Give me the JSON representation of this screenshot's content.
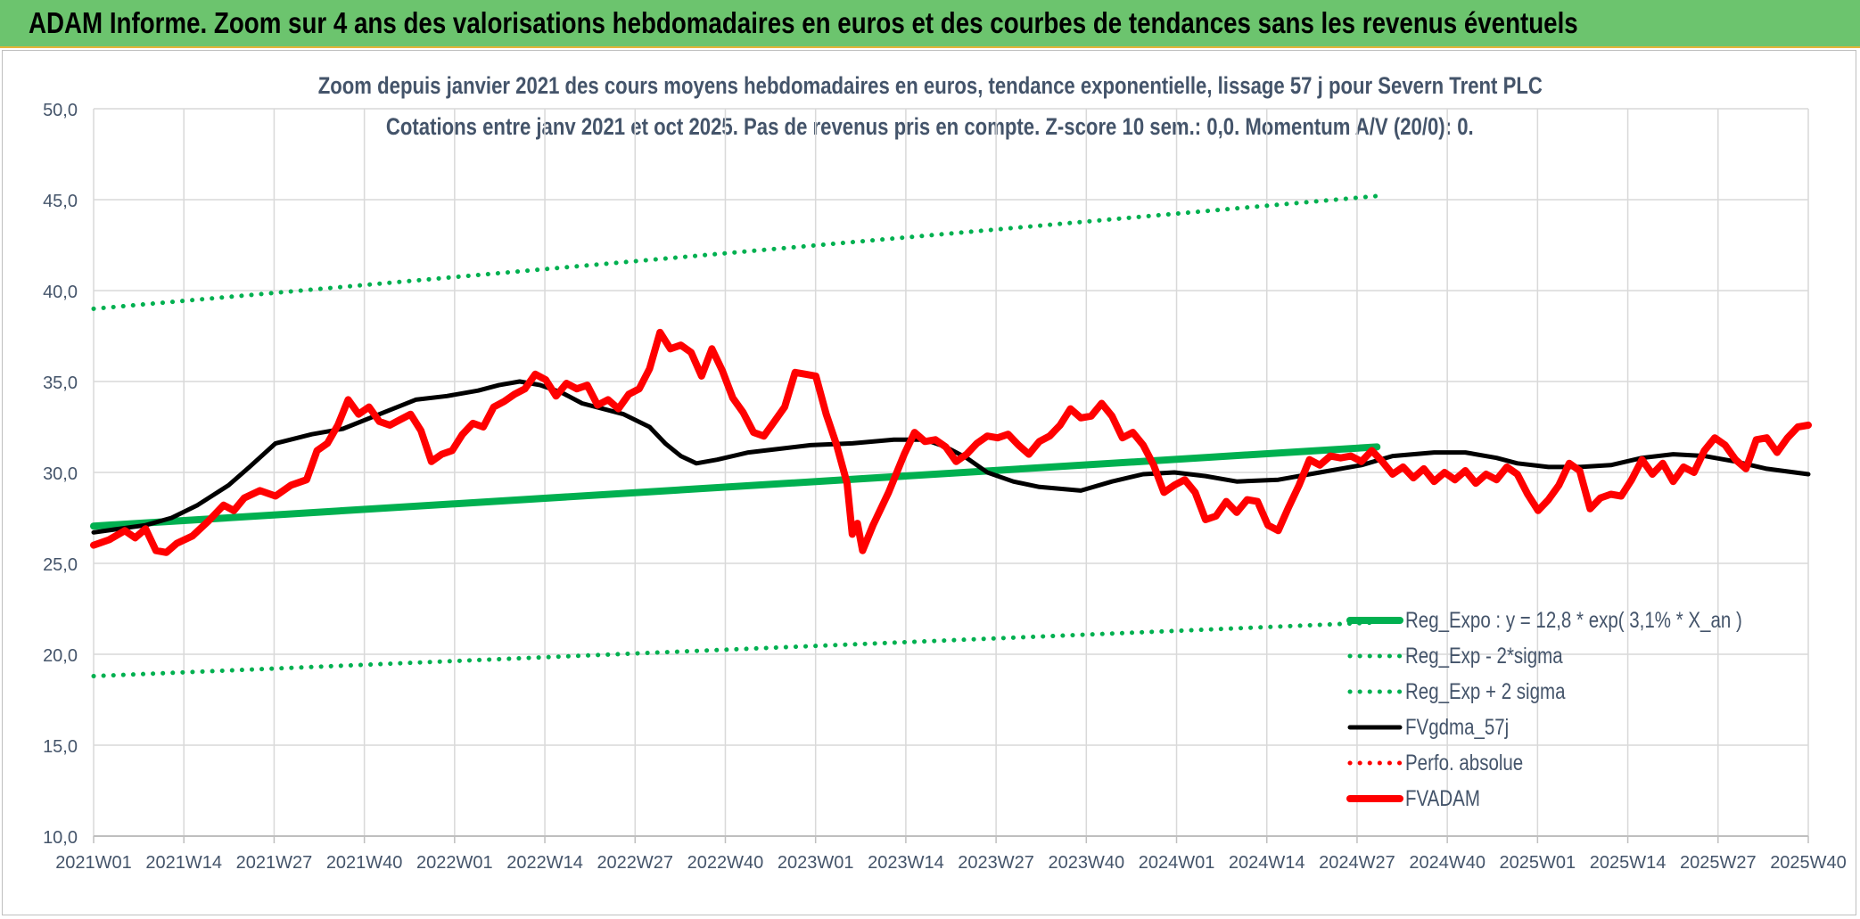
{
  "banner": {
    "title": "ADAM Informe. Zoom sur 4 ans des valorisations hebdomadaires en euros et des courbes de tendances sans les revenus éventuels"
  },
  "chart_data": {
    "type": "line",
    "title": "Zoom depuis janvier 2021 des cours moyens hebdomadaires en euros, tendance exponentielle, lissage 57 j pour Severn Trent PLC",
    "subtitle": "Cotations entre janv 2021 et oct 2025. Pas de revenus pris en compte. Z-score 10 sem.: 0,0. Momentum A/V (20/0): 0.",
    "xlabel": "",
    "ylabel": "",
    "ylim": [
      10,
      50
    ],
    "yticks": [
      "10,0",
      "15,0",
      "20,0",
      "25,0",
      "30,0",
      "35,0",
      "40,0",
      "45,0",
      "50,0"
    ],
    "x_tick_labels": [
      "2021W01",
      "2021W14",
      "2021W27",
      "2021W40",
      "2022W01",
      "2022W14",
      "2022W27",
      "2022W40",
      "2023W01",
      "2023W14",
      "2023W27",
      "2023W40",
      "2024W01",
      "2024W14",
      "2024W27",
      "2024W40",
      "2025W01",
      "2025W14",
      "2025W27",
      "2025W40"
    ],
    "grid": true,
    "legend_position": "bottom-right",
    "series": [
      {
        "name": "Reg_Expo : y = 12,8 * exp( 3,1% * X_an )",
        "style": "solid-thick",
        "color": "#00b050",
        "points": [
          [
            0,
            27.05
          ],
          [
            247,
            31.4
          ]
        ]
      },
      {
        "name": "Reg_Exp - 2*sigma",
        "style": "dotted",
        "color": "#00b050",
        "points": [
          [
            0,
            18.8
          ],
          [
            247,
            21.75
          ]
        ]
      },
      {
        "name": "Reg_Exp + 2 sigma",
        "style": "dotted",
        "color": "#00b050",
        "points": [
          [
            0,
            39.0
          ],
          [
            247,
            45.2
          ]
        ]
      },
      {
        "name": "FVgdma_57j",
        "style": "solid",
        "color": "#000000",
        "points": [
          [
            0,
            26.7
          ],
          [
            5,
            26.9
          ],
          [
            10,
            27.1
          ],
          [
            15,
            27.5
          ],
          [
            20,
            28.2
          ],
          [
            26,
            29.3
          ],
          [
            30,
            30.3
          ],
          [
            35,
            31.6
          ],
          [
            42,
            32.1
          ],
          [
            48,
            32.4
          ],
          [
            55,
            33.2
          ],
          [
            62,
            34.0
          ],
          [
            68,
            34.2
          ],
          [
            74,
            34.5
          ],
          [
            78,
            34.8
          ],
          [
            82,
            35.0
          ],
          [
            86,
            34.8
          ],
          [
            90,
            34.4
          ],
          [
            94,
            33.8
          ],
          [
            98,
            33.5
          ],
          [
            102,
            33.2
          ],
          [
            107,
            32.5
          ],
          [
            110,
            31.6
          ],
          [
            113,
            30.9
          ],
          [
            116,
            30.5
          ],
          [
            120,
            30.7
          ],
          [
            126,
            31.1
          ],
          [
            132,
            31.3
          ],
          [
            138,
            31.5
          ],
          [
            146,
            31.6
          ],
          [
            154,
            31.8
          ],
          [
            160,
            31.8
          ],
          [
            164,
            31.4
          ],
          [
            168,
            30.8
          ],
          [
            172,
            30.0
          ],
          [
            177,
            29.5
          ],
          [
            182,
            29.2
          ],
          [
            190,
            29.0
          ],
          [
            196,
            29.5
          ],
          [
            202,
            29.9
          ],
          [
            208,
            30.0
          ],
          [
            214,
            29.8
          ],
          [
            220,
            29.5
          ],
          [
            228,
            29.6
          ],
          [
            236,
            30.0
          ],
          [
            244,
            30.4
          ],
          [
            250,
            30.9
          ],
          [
            258,
            31.1
          ],
          [
            264,
            31.1
          ],
          [
            270,
            30.8
          ],
          [
            274,
            30.5
          ],
          [
            280,
            30.3
          ],
          [
            286,
            30.3
          ],
          [
            292,
            30.4
          ],
          [
            298,
            30.8
          ],
          [
            304,
            31.0
          ],
          [
            310,
            30.9
          ],
          [
            316,
            30.6
          ],
          [
            322,
            30.2
          ],
          [
            330,
            29.9
          ]
        ]
      },
      {
        "name": "Perfo. absolue",
        "style": "dotted",
        "color": "#ff0000",
        "points": []
      },
      {
        "name": "FVADAM",
        "style": "solid-thick",
        "color": "#ff0000",
        "points": [
          [
            0,
            26.0
          ],
          [
            3,
            26.3
          ],
          [
            6,
            26.8
          ],
          [
            8,
            26.4
          ],
          [
            10,
            26.9
          ],
          [
            12,
            25.7
          ],
          [
            14,
            25.6
          ],
          [
            16,
            26.1
          ],
          [
            19,
            26.5
          ],
          [
            22,
            27.3
          ],
          [
            25,
            28.2
          ],
          [
            27,
            27.9
          ],
          [
            29,
            28.6
          ],
          [
            32,
            29.0
          ],
          [
            35,
            28.7
          ],
          [
            38,
            29.3
          ],
          [
            41,
            29.6
          ],
          [
            43,
            31.2
          ],
          [
            45,
            31.6
          ],
          [
            47,
            32.6
          ],
          [
            49,
            34.0
          ],
          [
            51,
            33.2
          ],
          [
            53,
            33.6
          ],
          [
            55,
            32.8
          ],
          [
            57,
            32.6
          ],
          [
            59,
            32.9
          ],
          [
            61,
            33.2
          ],
          [
            63,
            32.3
          ],
          [
            65,
            30.6
          ],
          [
            67,
            31.0
          ],
          [
            69,
            31.2
          ],
          [
            71,
            32.1
          ],
          [
            73,
            32.7
          ],
          [
            75,
            32.5
          ],
          [
            77,
            33.6
          ],
          [
            79,
            33.9
          ],
          [
            81,
            34.3
          ],
          [
            83,
            34.6
          ],
          [
            85,
            35.4
          ],
          [
            87,
            35.1
          ],
          [
            89,
            34.2
          ],
          [
            91,
            34.9
          ],
          [
            93,
            34.6
          ],
          [
            95,
            34.8
          ],
          [
            97,
            33.7
          ],
          [
            99,
            34.0
          ],
          [
            101,
            33.5
          ],
          [
            103,
            34.3
          ],
          [
            105,
            34.6
          ],
          [
            107,
            35.7
          ],
          [
            109,
            37.7
          ],
          [
            111,
            36.8
          ],
          [
            113,
            37.0
          ],
          [
            115,
            36.6
          ],
          [
            117,
            35.3
          ],
          [
            119,
            36.8
          ],
          [
            121,
            35.6
          ],
          [
            123,
            34.1
          ],
          [
            125,
            33.3
          ],
          [
            127,
            32.2
          ],
          [
            129,
            32.0
          ],
          [
            131,
            32.8
          ],
          [
            133,
            33.6
          ],
          [
            135,
            35.5
          ],
          [
            137,
            35.4
          ],
          [
            139,
            35.3
          ],
          [
            141,
            33.2
          ],
          [
            143,
            31.5
          ],
          [
            145,
            29.4
          ],
          [
            146,
            26.6
          ],
          [
            147,
            27.2
          ],
          [
            148,
            25.7
          ],
          [
            150,
            27.1
          ],
          [
            153,
            28.9
          ],
          [
            156,
            31.0
          ],
          [
            158,
            32.2
          ],
          [
            160,
            31.7
          ],
          [
            162,
            31.8
          ],
          [
            164,
            31.4
          ],
          [
            166,
            30.6
          ],
          [
            168,
            31.0
          ],
          [
            170,
            31.6
          ],
          [
            172,
            32.0
          ],
          [
            174,
            31.9
          ],
          [
            176,
            32.1
          ],
          [
            178,
            31.5
          ],
          [
            180,
            31.0
          ],
          [
            182,
            31.7
          ],
          [
            184,
            32.0
          ],
          [
            186,
            32.6
          ],
          [
            188,
            33.5
          ],
          [
            190,
            33.0
          ],
          [
            192,
            33.1
          ],
          [
            194,
            33.8
          ],
          [
            196,
            33.1
          ],
          [
            198,
            31.9
          ],
          [
            200,
            32.2
          ],
          [
            202,
            31.5
          ],
          [
            204,
            30.4
          ],
          [
            206,
            28.9
          ],
          [
            208,
            29.3
          ],
          [
            210,
            29.6
          ],
          [
            212,
            28.9
          ],
          [
            214,
            27.4
          ],
          [
            216,
            27.6
          ],
          [
            218,
            28.4
          ],
          [
            220,
            27.8
          ],
          [
            222,
            28.5
          ],
          [
            224,
            28.4
          ],
          [
            226,
            27.1
          ],
          [
            228,
            26.8
          ],
          [
            230,
            28.1
          ],
          [
            232,
            29.3
          ],
          [
            234,
            30.7
          ],
          [
            236,
            30.4
          ],
          [
            238,
            30.9
          ],
          [
            240,
            30.8
          ],
          [
            242,
            30.9
          ],
          [
            244,
            30.6
          ],
          [
            246,
            31.2
          ],
          [
            248,
            30.6
          ],
          [
            250,
            29.9
          ],
          [
            252,
            30.3
          ],
          [
            254,
            29.7
          ],
          [
            256,
            30.2
          ],
          [
            258,
            29.5
          ],
          [
            260,
            30.0
          ],
          [
            262,
            29.6
          ],
          [
            264,
            30.1
          ],
          [
            266,
            29.4
          ],
          [
            268,
            29.9
          ],
          [
            270,
            29.6
          ],
          [
            272,
            30.3
          ],
          [
            274,
            29.9
          ],
          [
            276,
            28.8
          ],
          [
            278,
            27.9
          ],
          [
            280,
            28.5
          ],
          [
            282,
            29.3
          ],
          [
            284,
            30.5
          ],
          [
            286,
            30.1
          ],
          [
            288,
            28.0
          ],
          [
            290,
            28.6
          ],
          [
            292,
            28.8
          ],
          [
            294,
            28.7
          ],
          [
            296,
            29.6
          ],
          [
            298,
            30.7
          ],
          [
            300,
            29.9
          ],
          [
            302,
            30.5
          ],
          [
            304,
            29.5
          ],
          [
            306,
            30.3
          ],
          [
            308,
            30.0
          ],
          [
            310,
            31.2
          ],
          [
            312,
            31.9
          ],
          [
            314,
            31.5
          ],
          [
            316,
            30.7
          ],
          [
            318,
            30.2
          ],
          [
            320,
            31.8
          ],
          [
            322,
            31.9
          ],
          [
            324,
            31.1
          ],
          [
            326,
            31.9
          ],
          [
            328,
            32.5
          ],
          [
            330,
            32.6
          ]
        ]
      }
    ]
  },
  "legend": [
    {
      "label": "Reg_Expo : y = 12,8 * exp( 3,1% * X_an )",
      "style": "solid-thick",
      "color": "#00b050"
    },
    {
      "label": "Reg_Exp - 2*sigma",
      "style": "dotted",
      "color": "#00b050"
    },
    {
      "label": "Reg_Exp + 2 sigma",
      "style": "dotted",
      "color": "#00b050"
    },
    {
      "label": "FVgdma_57j",
      "style": "solid",
      "color": "#000000"
    },
    {
      "label": "Perfo. absolue",
      "style": "dotted",
      "color": "#ff0000"
    },
    {
      "label": "FVADAM",
      "style": "solid-thick",
      "color": "#ff0000"
    }
  ]
}
